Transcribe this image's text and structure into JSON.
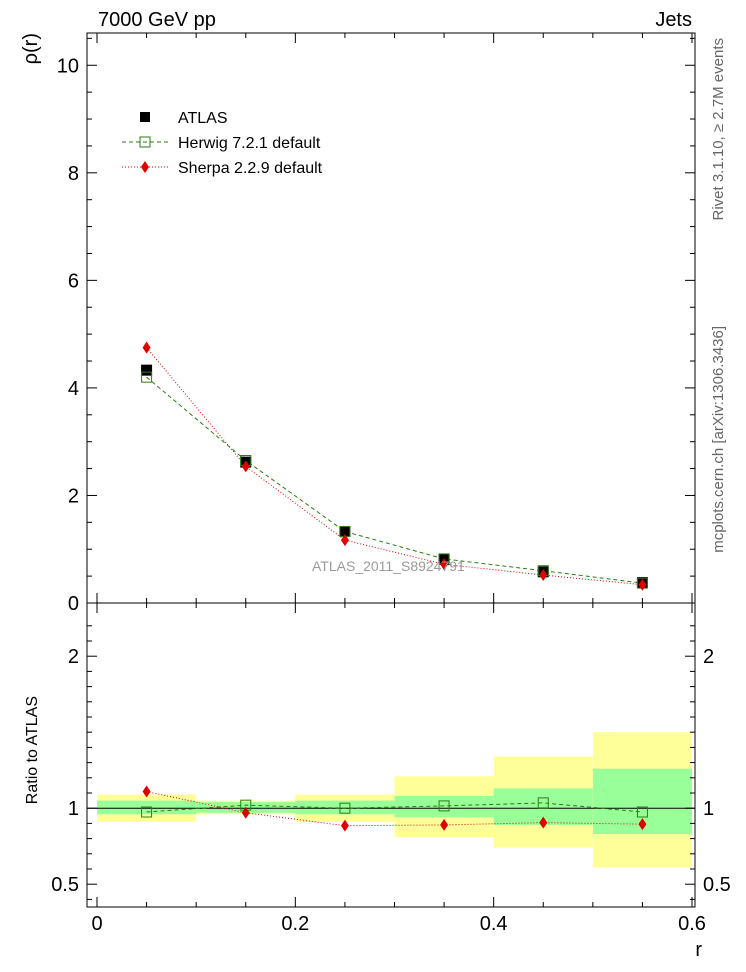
{
  "header": {
    "left": "7000 GeV pp",
    "right": "Jets"
  },
  "side_labels": {
    "rivet": "Rivet 3.1.10, ≥ 2.7M events",
    "mcplots": "mcplots.cern.ch [arXiv:1306.3436]"
  },
  "watermark": "ATLAS_2011_S8924791",
  "colors": {
    "herwig": "#2a7d12",
    "sherpa": "#e00000",
    "band_inner": "#99ff99",
    "band_outer": "#ffff99"
  },
  "chart_data": [
    {
      "type": "scatter",
      "title": "",
      "xlabel": "r",
      "ylabel": "ρ(r)",
      "xlim": [
        0,
        0.6
      ],
      "ylim": [
        0,
        10.6
      ],
      "yticks": [
        0,
        2,
        4,
        6,
        8,
        10
      ],
      "legend_position": "top-left",
      "x": [
        0.05,
        0.15,
        0.25,
        0.35,
        0.45,
        0.55
      ],
      "series": [
        {
          "name": "ATLAS",
          "values": [
            4.33,
            2.62,
            1.33,
            0.81,
            0.58,
            0.38
          ]
        },
        {
          "name": "Herwig 7.2.1 default",
          "values": [
            4.2,
            2.65,
            1.33,
            0.82,
            0.6,
            0.37
          ]
        },
        {
          "name": "Sherpa 2.2.9 default",
          "values": [
            4.75,
            2.54,
            1.17,
            0.72,
            0.52,
            0.34
          ]
        }
      ]
    },
    {
      "type": "scatter",
      "title": "",
      "xlabel": "r",
      "ylabel": "Ratio to ATLAS",
      "xlim": [
        0,
        0.6
      ],
      "ylim": [
        0.35,
        2.35
      ],
      "yticks": [
        0.5,
        1,
        2
      ],
      "xticks": [
        0,
        0.2,
        0.4,
        0.6
      ],
      "x": [
        0.05,
        0.15,
        0.25,
        0.35,
        0.45,
        0.55
      ],
      "bins": [
        [
          0,
          0.1
        ],
        [
          0.1,
          0.2
        ],
        [
          0.2,
          0.3
        ],
        [
          0.3,
          0.4
        ],
        [
          0.4,
          0.5
        ],
        [
          0.5,
          0.6
        ]
      ],
      "stat_band": [
        [
          0.96,
          1.05
        ],
        [
          0.97,
          1.04
        ],
        [
          0.96,
          1.05
        ],
        [
          0.94,
          1.08
        ],
        [
          0.89,
          1.13
        ],
        [
          0.83,
          1.26
        ]
      ],
      "total_band": [
        [
          0.91,
          1.09
        ],
        [
          0.96,
          1.05
        ],
        [
          0.91,
          1.09
        ],
        [
          0.81,
          1.21
        ],
        [
          0.74,
          1.34
        ],
        [
          0.61,
          1.5
        ]
      ],
      "series": [
        {
          "name": "Herwig 7.2.1 default",
          "values": [
            0.975,
            1.02,
            1.0,
            1.015,
            1.035,
            0.975
          ]
        },
        {
          "name": "Sherpa 2.2.9 default",
          "values": [
            1.11,
            0.97,
            0.885,
            0.89,
            0.905,
            0.895
          ]
        }
      ]
    }
  ]
}
